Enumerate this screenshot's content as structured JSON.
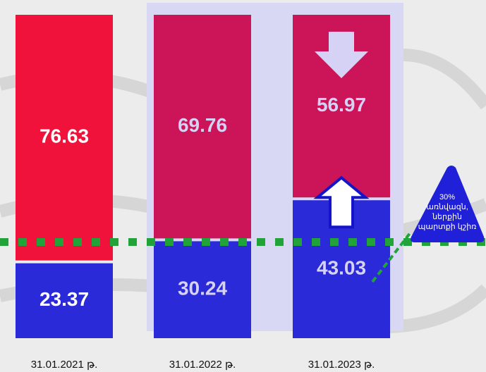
{
  "chart_data": {
    "type": "stacked_bar",
    "categories": [
      "31.01.2021 թ.",
      "31.01.2022 թ.",
      "31.01.2023 թ."
    ],
    "series": [
      {
        "colors": [
          "#2a2ad8",
          "#2a2ad8",
          "#2a2ad8"
        ],
        "values": [
          23.37,
          30.24,
          43.03
        ]
      },
      {
        "colors": [
          "#f0123a",
          "#cc1458",
          "#cc1458"
        ],
        "values": [
          76.63,
          69.76,
          56.97
        ]
      }
    ],
    "reference_line": {
      "value": 30,
      "color": "#22a33a",
      "label_lines": [
        "30%",
        "առնվազն,",
        "ներքին",
        "պարտքի կշիռ"
      ]
    }
  }
}
